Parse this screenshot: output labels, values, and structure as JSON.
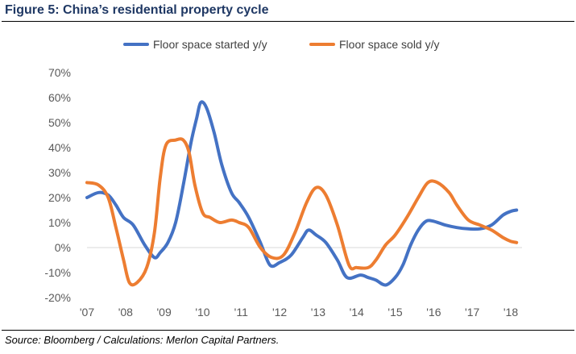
{
  "figure": {
    "title": "Figure 5: China’s residential property cycle",
    "source": "Source: Bloomberg / Calculations: Merlon Capital Partners."
  },
  "chart_data": {
    "type": "line",
    "title": "",
    "xlabel": "",
    "ylabel": "",
    "x_tick_labels": [
      "'07",
      "'08",
      "'09",
      "'10",
      "'11",
      "'12",
      "'13",
      "'14",
      "'15",
      "'16",
      "'17",
      "'18"
    ],
    "y_tick_labels": [
      "70%",
      "60%",
      "50%",
      "40%",
      "30%",
      "20%",
      "10%",
      "0%",
      "-10%",
      "-20%"
    ],
    "ylim": [
      -20,
      70
    ],
    "xlim": [
      2007,
      2018.2
    ],
    "grid": false,
    "legend_position": "top",
    "series": [
      {
        "name": "Floor space started y/y",
        "color": "#4472c4",
        "points": [
          [
            2007.0,
            20
          ],
          [
            2007.3,
            22
          ],
          [
            2007.55,
            21
          ],
          [
            2007.75,
            17
          ],
          [
            2007.95,
            12
          ],
          [
            2008.2,
            9
          ],
          [
            2008.5,
            1
          ],
          [
            2008.75,
            -4
          ],
          [
            2008.9,
            -2
          ],
          [
            2009.1,
            2
          ],
          [
            2009.3,
            10
          ],
          [
            2009.5,
            25
          ],
          [
            2009.7,
            42
          ],
          [
            2009.85,
            52
          ],
          [
            2009.95,
            58
          ],
          [
            2010.1,
            56
          ],
          [
            2010.3,
            46
          ],
          [
            2010.5,
            33
          ],
          [
            2010.75,
            22
          ],
          [
            2010.95,
            18
          ],
          [
            2011.2,
            12
          ],
          [
            2011.5,
            2
          ],
          [
            2011.75,
            -7
          ],
          [
            2012.0,
            -6
          ],
          [
            2012.3,
            -3
          ],
          [
            2012.6,
            4
          ],
          [
            2012.75,
            7
          ],
          [
            2012.95,
            5
          ],
          [
            2013.2,
            2
          ],
          [
            2013.5,
            -5
          ],
          [
            2013.75,
            -12
          ],
          [
            2014.1,
            -11
          ],
          [
            2014.3,
            -12
          ],
          [
            2014.5,
            -13
          ],
          [
            2014.75,
            -15
          ],
          [
            2015.0,
            -12
          ],
          [
            2015.2,
            -7
          ],
          [
            2015.4,
            1
          ],
          [
            2015.6,
            7
          ],
          [
            2015.8,
            10.5
          ],
          [
            2016.0,
            10.5
          ],
          [
            2016.3,
            9
          ],
          [
            2016.6,
            8
          ],
          [
            2016.9,
            7.5
          ],
          [
            2017.2,
            7.5
          ],
          [
            2017.5,
            9
          ],
          [
            2017.8,
            13
          ],
          [
            2018.0,
            14.5
          ],
          [
            2018.15,
            15
          ]
        ]
      },
      {
        "name": "Floor space sold y/y",
        "color": "#ed7d31",
        "points": [
          [
            2007.0,
            26
          ],
          [
            2007.3,
            25
          ],
          [
            2007.55,
            20
          ],
          [
            2007.75,
            8
          ],
          [
            2007.95,
            -5
          ],
          [
            2008.1,
            -14
          ],
          [
            2008.3,
            -14
          ],
          [
            2008.55,
            -8
          ],
          [
            2008.75,
            6
          ],
          [
            2008.9,
            28
          ],
          [
            2009.05,
            41
          ],
          [
            2009.3,
            43
          ],
          [
            2009.5,
            43
          ],
          [
            2009.65,
            38
          ],
          [
            2009.8,
            25
          ],
          [
            2010.0,
            14
          ],
          [
            2010.2,
            12
          ],
          [
            2010.45,
            10
          ],
          [
            2010.75,
            11
          ],
          [
            2010.95,
            10
          ],
          [
            2011.2,
            8
          ],
          [
            2011.5,
            0
          ],
          [
            2011.8,
            -4
          ],
          [
            2012.1,
            -3
          ],
          [
            2012.4,
            6
          ],
          [
            2012.7,
            18
          ],
          [
            2012.95,
            24
          ],
          [
            2013.2,
            21
          ],
          [
            2013.5,
            9
          ],
          [
            2013.8,
            -7
          ],
          [
            2014.0,
            -8
          ],
          [
            2014.3,
            -8
          ],
          [
            2014.5,
            -5
          ],
          [
            2014.75,
            1
          ],
          [
            2015.0,
            5
          ],
          [
            2015.3,
            12
          ],
          [
            2015.6,
            20
          ],
          [
            2015.85,
            26
          ],
          [
            2016.1,
            26
          ],
          [
            2016.4,
            22
          ],
          [
            2016.6,
            17
          ],
          [
            2016.9,
            11
          ],
          [
            2017.2,
            9
          ],
          [
            2017.5,
            7
          ],
          [
            2017.8,
            4
          ],
          [
            2018.0,
            2.5
          ],
          [
            2018.15,
            2
          ]
        ]
      }
    ]
  }
}
